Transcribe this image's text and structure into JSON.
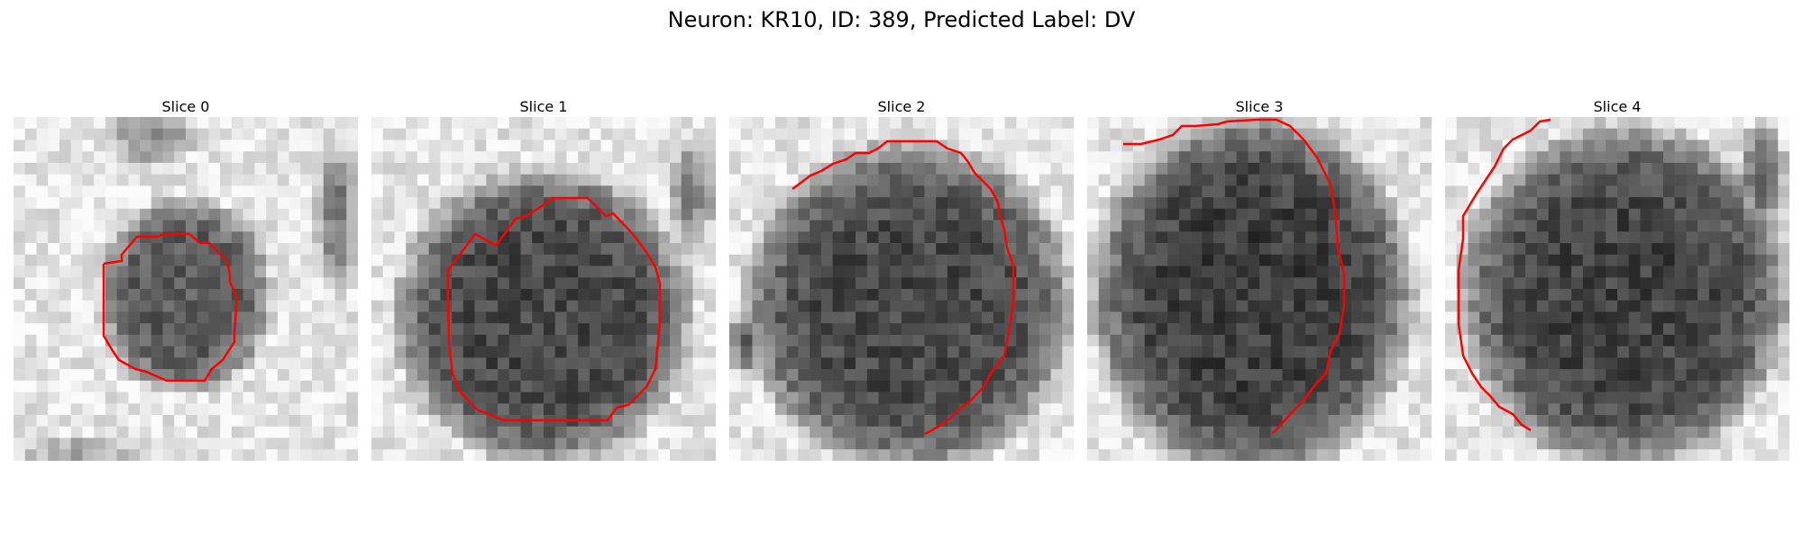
{
  "figure": {
    "title": "Neuron: KR10, ID: 389, Predicted Label: DV"
  },
  "slices": [
    {
      "title": "Slice 0"
    },
    {
      "title": "Slice 1"
    },
    {
      "title": "Slice 2"
    },
    {
      "title": "Slice 3"
    },
    {
      "title": "Slice 4"
    }
  ],
  "contour_color": "#ff0000"
}
